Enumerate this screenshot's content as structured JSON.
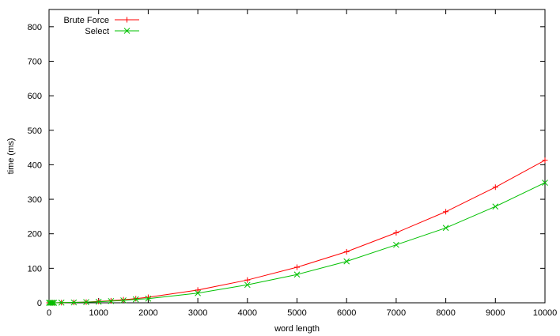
{
  "chart_data": {
    "type": "line",
    "xlabel": "word length",
    "ylabel": "time (ms)",
    "xlim": [
      0,
      10000
    ],
    "ylim": [
      0,
      850
    ],
    "xticks": [
      0,
      1000,
      2000,
      3000,
      4000,
      5000,
      6000,
      7000,
      8000,
      9000,
      10000
    ],
    "yticks": [
      0,
      100,
      200,
      300,
      400,
      500,
      600,
      700,
      800
    ],
    "grid": false,
    "legend_position": "top-left",
    "series": [
      {
        "name": "Brute Force",
        "color": "#ff0000",
        "marker": "plus",
        "x": [
          0,
          25,
          50,
          75,
          100,
          250,
          500,
          750,
          1000,
          1250,
          1500,
          1750,
          2000,
          3000,
          4000,
          5000,
          6000,
          7000,
          8000,
          9000,
          10000
        ],
        "y": [
          0,
          0,
          0,
          0,
          0,
          0.5,
          1,
          2,
          4,
          6,
          9,
          12,
          16,
          37,
          66,
          103,
          148,
          203,
          264,
          335,
          413
        ]
      },
      {
        "name": "Select",
        "color": "#00c000",
        "marker": "cross",
        "x": [
          0,
          25,
          50,
          75,
          100,
          250,
          500,
          750,
          1000,
          1250,
          1500,
          1750,
          2000,
          3000,
          4000,
          5000,
          6000,
          7000,
          8000,
          9000,
          10000
        ],
        "y": [
          0,
          0,
          0,
          0,
          0,
          0.5,
          1,
          2,
          3,
          5,
          7,
          10,
          12,
          28,
          52,
          82,
          120,
          168,
          217,
          279,
          348
        ]
      }
    ]
  }
}
